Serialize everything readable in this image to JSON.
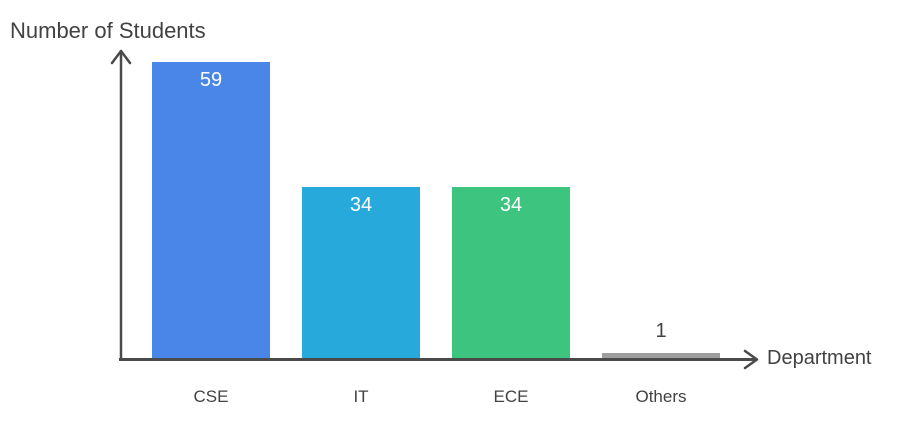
{
  "chart_data": {
    "type": "bar",
    "title": "",
    "ylabel": "Number of Students",
    "xlabel": "Department",
    "categories": [
      "CSE",
      "IT",
      "ECE",
      "Others"
    ],
    "values": [
      59,
      34,
      34,
      1
    ],
    "value_labels": [
      "59",
      "34",
      "34",
      "1"
    ],
    "ylim": [
      0,
      60
    ],
    "grid": false,
    "legend": false,
    "bar_colors": [
      "#4a86e8",
      "#27aadb",
      "#3dc47e",
      "#9e9e9e"
    ],
    "colors": {
      "axis": "#4a4a4a",
      "text": "#424242",
      "value_label_inside": "#ffffff",
      "value_label_outside": "#424242",
      "background": "#ffffff"
    }
  }
}
